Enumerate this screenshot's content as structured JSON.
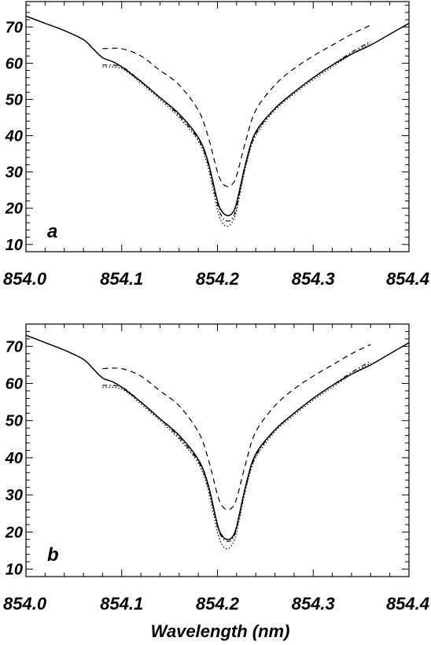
{
  "xlabel": "Wavelength (nm)",
  "chart_data": [
    {
      "type": "line",
      "panel_label": "a",
      "xlim": [
        854.0,
        854.4
      ],
      "ylim": [
        8,
        77
      ],
      "x_ticks": [
        854.0,
        854.1,
        854.2,
        854.3,
        854.4
      ],
      "x_tick_labels": [
        "854.0",
        "854.1",
        "854.2",
        "854.3",
        "854.4"
      ],
      "y_ticks": [
        10,
        20,
        30,
        40,
        50,
        60,
        70
      ],
      "y_tick_labels": [
        "10",
        "20",
        "30",
        "40",
        "50",
        "60",
        "70"
      ],
      "series": [
        {
          "style": "solid",
          "x": [
            854.0,
            854.02,
            854.04,
            854.06,
            854.07,
            854.08,
            854.09,
            854.1,
            854.12,
            854.14,
            854.16,
            854.18,
            854.19,
            854.2,
            854.205,
            854.21,
            854.215,
            854.22,
            854.23,
            854.24,
            854.26,
            854.28,
            854.3,
            854.32,
            854.34,
            854.36,
            854.38,
            854.4
          ],
          "y": [
            73,
            71,
            69,
            66.5,
            64,
            61.5,
            60.5,
            59,
            55,
            50.5,
            46,
            39.5,
            33,
            22,
            19,
            18,
            18.5,
            21.5,
            33,
            41,
            47.5,
            52,
            56,
            59.5,
            62.5,
            65,
            68,
            71
          ]
        },
        {
          "style": "dashed",
          "x": [
            854.08,
            854.1,
            854.12,
            854.14,
            854.16,
            854.18,
            854.19,
            854.2,
            854.205,
            854.21,
            854.215,
            854.22,
            854.23,
            854.24,
            854.26,
            854.28,
            854.3,
            854.32,
            854.34,
            854.36
          ],
          "y": [
            64,
            64,
            62,
            58,
            54,
            47,
            40,
            30,
            27,
            26,
            26.5,
            29,
            39,
            47,
            54,
            58.5,
            62,
            65,
            68,
            70.5
          ]
        },
        {
          "style": "dotted",
          "x": [
            854.08,
            854.1,
            854.12,
            854.14,
            854.16,
            854.18,
            854.19,
            854.2,
            854.205,
            854.21,
            854.215,
            854.22,
            854.23,
            854.24,
            854.26,
            854.28,
            854.3,
            854.32,
            854.34,
            854.36
          ],
          "y": [
            59,
            58.5,
            54.5,
            50,
            45,
            38.5,
            31.5,
            19.5,
            16,
            15,
            16,
            19.5,
            32,
            40,
            47,
            51.5,
            55.5,
            59,
            62.5,
            65.5
          ]
        },
        {
          "style": "dash-dot",
          "x": [
            854.08,
            854.1,
            854.12,
            854.14,
            854.16,
            854.18,
            854.19,
            854.2,
            854.205,
            854.21,
            854.215,
            854.22,
            854.23,
            854.24,
            854.26,
            854.28,
            854.3,
            854.32,
            854.34,
            854.36
          ],
          "y": [
            59.5,
            59,
            55,
            50.5,
            45.5,
            39,
            32.5,
            21,
            17.5,
            16.5,
            17,
            20.5,
            32.5,
            40.5,
            47.5,
            52,
            56,
            59.5,
            63,
            66
          ]
        }
      ]
    },
    {
      "type": "line",
      "panel_label": "b",
      "xlim": [
        854.0,
        854.4
      ],
      "ylim": [
        8,
        76
      ],
      "x_ticks": [
        854.0,
        854.1,
        854.2,
        854.3,
        854.4
      ],
      "x_tick_labels": [
        "854.0",
        "854.1",
        "854.2",
        "854.3",
        "854.4"
      ],
      "y_ticks": [
        10,
        20,
        30,
        40,
        50,
        60,
        70
      ],
      "y_tick_labels": [
        "10",
        "20",
        "30",
        "40",
        "50",
        "60",
        "70"
      ],
      "series": [
        {
          "style": "solid",
          "x": [
            854.0,
            854.02,
            854.04,
            854.06,
            854.07,
            854.08,
            854.09,
            854.1,
            854.12,
            854.14,
            854.16,
            854.18,
            854.19,
            854.2,
            854.205,
            854.21,
            854.215,
            854.22,
            854.23,
            854.24,
            854.26,
            854.28,
            854.3,
            854.32,
            854.34,
            854.36,
            854.38,
            854.4
          ],
          "y": [
            73,
            71,
            69,
            66.5,
            64,
            61.5,
            60.5,
            59,
            55,
            50.5,
            46,
            39.5,
            33,
            22,
            19,
            18,
            18.5,
            21.5,
            33,
            41,
            47.5,
            52,
            56,
            59.5,
            62.5,
            65,
            68,
            71
          ]
        },
        {
          "style": "dashed",
          "x": [
            854.08,
            854.1,
            854.12,
            854.14,
            854.16,
            854.18,
            854.19,
            854.2,
            854.205,
            854.21,
            854.215,
            854.22,
            854.23,
            854.24,
            854.26,
            854.28,
            854.3,
            854.32,
            854.34,
            854.36
          ],
          "y": [
            64,
            64,
            62,
            58,
            54,
            47,
            40,
            30,
            27,
            26,
            26.5,
            29,
            39,
            47,
            54,
            58.5,
            62,
            65,
            68,
            70.5
          ]
        },
        {
          "style": "dotted",
          "x": [
            854.08,
            854.1,
            854.12,
            854.14,
            854.16,
            854.18,
            854.19,
            854.2,
            854.205,
            854.21,
            854.215,
            854.22,
            854.23,
            854.24,
            854.26,
            854.28,
            854.3,
            854.32,
            854.34,
            854.36
          ],
          "y": [
            59,
            58.5,
            54.5,
            50,
            45,
            38.5,
            31.5,
            20,
            16.5,
            15.5,
            16.5,
            20,
            32,
            40,
            47,
            51.5,
            55.5,
            59,
            62.5,
            65.5
          ]
        },
        {
          "style": "dash-dot",
          "x": [
            854.08,
            854.1,
            854.12,
            854.14,
            854.16,
            854.18,
            854.19,
            854.2,
            854.205,
            854.21,
            854.215,
            854.22,
            854.23,
            854.24,
            854.26,
            854.28,
            854.3,
            854.32,
            854.34,
            854.36
          ],
          "y": [
            59.5,
            59,
            55,
            50.5,
            45.5,
            39,
            32.5,
            21.5,
            18.5,
            17.5,
            18,
            21,
            32.5,
            40.5,
            47.5,
            52,
            56,
            59.5,
            63,
            66
          ]
        }
      ]
    }
  ]
}
